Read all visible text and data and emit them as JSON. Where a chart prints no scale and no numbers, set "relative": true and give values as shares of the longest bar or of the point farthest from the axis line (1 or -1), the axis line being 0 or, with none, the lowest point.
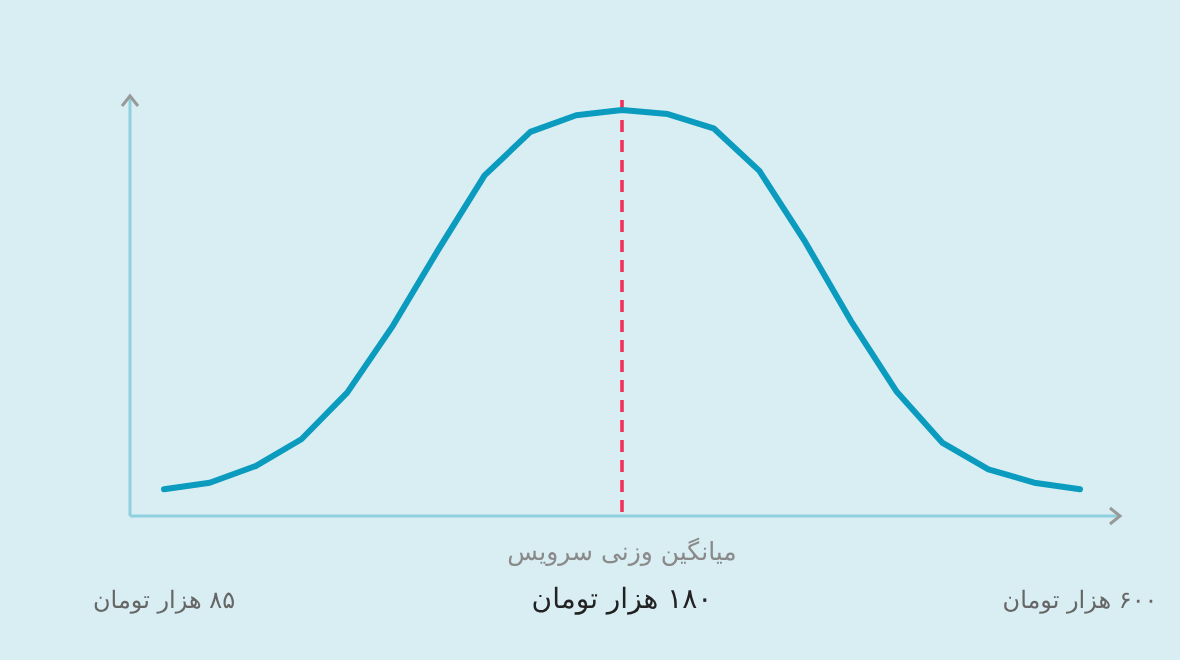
{
  "chart_data": {
    "type": "line",
    "relative": true,
    "marker": "none",
    "line_style": "solid",
    "categories": [
      "۸۵ هزار تومان",
      null,
      null,
      null,
      null,
      null,
      null,
      null,
      null,
      null,
      "۱۸۰ هزار تومان",
      null,
      null,
      null,
      null,
      null,
      null,
      null,
      null,
      null,
      "۶۰۰ هزار تومان"
    ],
    "series": [
      {
        "color": "#0b9bbf",
        "values": [
          0.066,
          0.082,
          0.123,
          0.189,
          0.304,
          0.469,
          0.658,
          0.839,
          0.946,
          0.987,
          1.0,
          0.99,
          0.955,
          0.85,
          0.675,
          0.48,
          0.306,
          0.18,
          0.115,
          0.082,
          0.066
        ]
      }
    ],
    "ref_lines": [
      {
        "axis": "x",
        "value": "۱۸۰ هزار تومان",
        "label": "میانگین وزنی سرویس",
        "color": "#f0325a",
        "line_style": "dashed"
      }
    ]
  }
}
